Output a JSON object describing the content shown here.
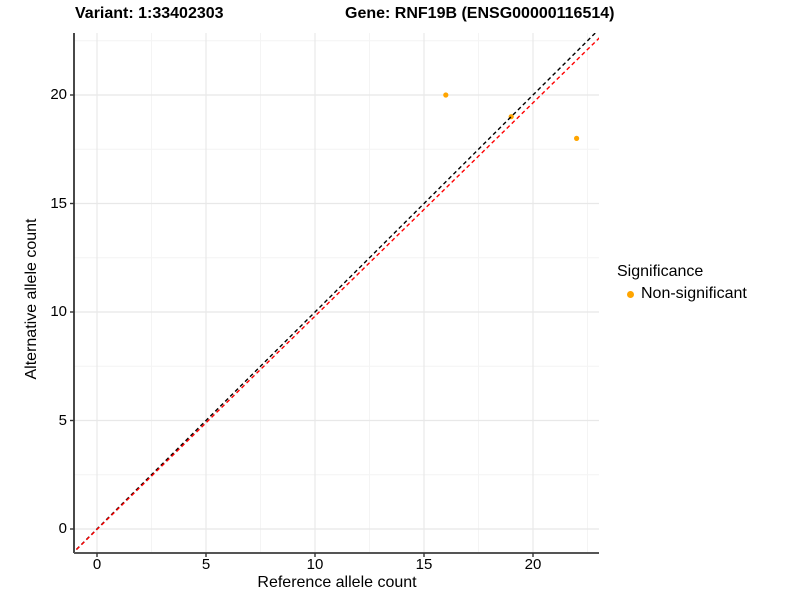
{
  "titles": {
    "variant": "Variant: 1:33402303",
    "gene": "Gene: RNF19B (ENSG00000116514)"
  },
  "chart_data": {
    "type": "scatter",
    "xlabel": "Reference allele count",
    "ylabel": "Alternative allele count",
    "xlim": [
      -1.1,
      23.1
    ],
    "ylim": [
      -1.1,
      22.9
    ],
    "x_ticks": [
      0,
      5,
      10,
      15,
      20
    ],
    "y_ticks": [
      0,
      5,
      10,
      15,
      20
    ],
    "x_minor_ticks": [
      2.5,
      7.5,
      12.5,
      17.5,
      22.5
    ],
    "y_minor_ticks": [
      2.5,
      7.5,
      12.5,
      17.5,
      22.5
    ],
    "grid": true,
    "legend_position": "right",
    "series": [
      {
        "name": "Non-significant",
        "color": "#FFA500",
        "points": [
          [
            16,
            20
          ],
          [
            19,
            19
          ],
          [
            22,
            18
          ]
        ]
      }
    ],
    "lines": [
      {
        "name": "identity-line",
        "slope": 1,
        "intercept": 0,
        "color": "#000000",
        "style": "dashed"
      },
      {
        "name": "fit-line",
        "slope": 0.983,
        "intercept": -0.02,
        "color": "#FF0000",
        "style": "dashed"
      }
    ]
  },
  "legend": {
    "title": "Significance",
    "items": [
      {
        "label": "Non-significant",
        "color": "#FFA500"
      }
    ]
  },
  "colors": {
    "background": "#FFFFFF",
    "grid_major": "#E8E8E8",
    "grid_minor": "#F4F4F4",
    "axis_left": "#1a1a1a",
    "axis_bottom": "#555555",
    "tick_mark": "#333333",
    "text": "#000000"
  }
}
